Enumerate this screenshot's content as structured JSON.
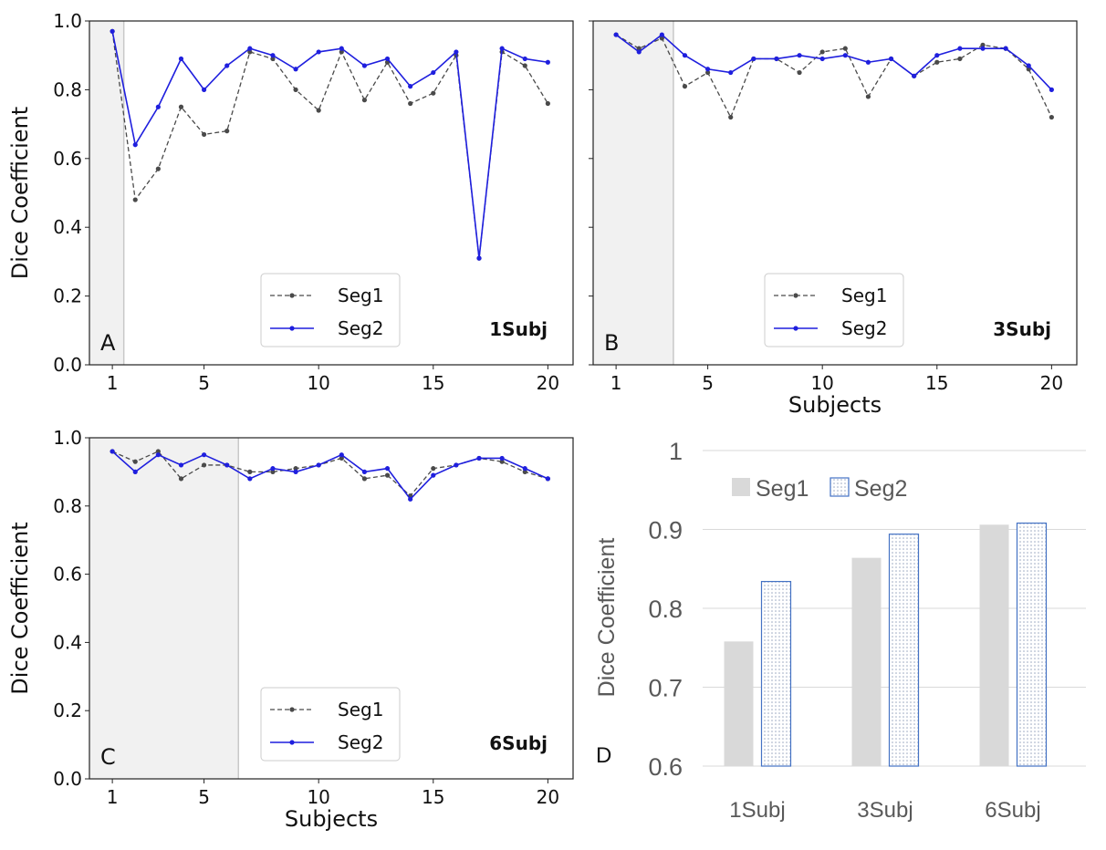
{
  "chart_data": [
    {
      "type": "line",
      "panel_letter": "A",
      "panel_tag": "1Subj",
      "title": "",
      "xlabel": "",
      "ylabel": "Dice Coefficient",
      "xlim": [
        0,
        21.1
      ],
      "ylim": [
        0.0,
        1.0
      ],
      "xticks": [
        1,
        5,
        10,
        15,
        20
      ],
      "yticks": [
        0.0,
        0.2,
        0.4,
        0.6,
        0.8,
        1.0
      ],
      "ytick_labels": [
        "0.0",
        "0.2",
        "0.4",
        "0.6",
        "0.8",
        "1.0"
      ],
      "show_ytick_labels": true,
      "shaded_subjects": 1,
      "legend": [
        "Seg1",
        "Seg2"
      ],
      "legend_location": "lower-center",
      "x": [
        1,
        2,
        3,
        4,
        5,
        6,
        7,
        8,
        9,
        10,
        11,
        12,
        13,
        14,
        15,
        16,
        17,
        18,
        19,
        20
      ],
      "series": [
        {
          "name": "Seg1",
          "style": "dashed",
          "color": "#4a4a4a",
          "values": [
            0.97,
            0.48,
            0.57,
            0.75,
            0.67,
            0.68,
            0.91,
            0.89,
            0.8,
            0.74,
            0.91,
            0.77,
            0.88,
            0.76,
            0.79,
            0.9,
            0.31,
            0.91,
            0.87,
            0.76
          ]
        },
        {
          "name": "Seg2",
          "style": "solid",
          "color": "#1f1fde",
          "values": [
            0.97,
            0.64,
            0.75,
            0.89,
            0.8,
            0.87,
            0.92,
            0.9,
            0.86,
            0.91,
            0.92,
            0.87,
            0.89,
            0.81,
            0.85,
            0.91,
            0.31,
            0.92,
            0.89,
            0.88
          ]
        }
      ]
    },
    {
      "type": "line",
      "panel_letter": "B",
      "panel_tag": "3Subj",
      "title": "",
      "xlabel": "Subjects",
      "ylabel": "",
      "xlim": [
        0,
        21.1
      ],
      "ylim": [
        0.0,
        1.0
      ],
      "xticks": [
        1,
        5,
        10,
        15,
        20
      ],
      "yticks": [
        0.0,
        0.2,
        0.4,
        0.6,
        0.8,
        1.0
      ],
      "ytick_labels": [
        "0.0",
        "0.2",
        "0.4",
        "0.6",
        "0.8",
        "1.0"
      ],
      "show_ytick_labels": false,
      "shaded_subjects": 3,
      "legend": [
        "Seg1",
        "Seg2"
      ],
      "legend_location": "lower-center",
      "x": [
        1,
        2,
        3,
        4,
        5,
        6,
        7,
        8,
        9,
        10,
        11,
        12,
        13,
        14,
        15,
        16,
        17,
        18,
        19,
        20
      ],
      "series": [
        {
          "name": "Seg1",
          "style": "dashed",
          "color": "#4a4a4a",
          "values": [
            0.96,
            0.92,
            0.95,
            0.81,
            0.85,
            0.72,
            0.89,
            0.89,
            0.85,
            0.91,
            0.92,
            0.78,
            0.89,
            0.84,
            0.88,
            0.89,
            0.93,
            0.92,
            0.86,
            0.72
          ]
        },
        {
          "name": "Seg2",
          "style": "solid",
          "color": "#1f1fde",
          "values": [
            0.96,
            0.91,
            0.96,
            0.9,
            0.86,
            0.85,
            0.89,
            0.89,
            0.9,
            0.89,
            0.9,
            0.88,
            0.89,
            0.84,
            0.9,
            0.92,
            0.92,
            0.92,
            0.87,
            0.8
          ]
        }
      ]
    },
    {
      "type": "line",
      "panel_letter": "C",
      "panel_tag": "6Subj",
      "title": "",
      "xlabel": "Subjects",
      "ylabel": "Dice Coefficient",
      "xlim": [
        0,
        21.1
      ],
      "ylim": [
        0.0,
        1.0
      ],
      "xticks": [
        1,
        5,
        10,
        15,
        20
      ],
      "yticks": [
        0.0,
        0.2,
        0.4,
        0.6,
        0.8,
        1.0
      ],
      "ytick_labels": [
        "0.0",
        "0.2",
        "0.4",
        "0.6",
        "0.8",
        "1.0"
      ],
      "show_ytick_labels": true,
      "shaded_subjects": 6,
      "legend": [
        "Seg1",
        "Seg2"
      ],
      "legend_location": "lower-center",
      "x": [
        1,
        2,
        3,
        4,
        5,
        6,
        7,
        8,
        9,
        10,
        11,
        12,
        13,
        14,
        15,
        16,
        17,
        18,
        19,
        20
      ],
      "series": [
        {
          "name": "Seg1",
          "style": "dashed",
          "color": "#4a4a4a",
          "values": [
            0.96,
            0.93,
            0.96,
            0.88,
            0.92,
            0.92,
            0.9,
            0.9,
            0.91,
            0.92,
            0.94,
            0.88,
            0.89,
            0.83,
            0.91,
            0.92,
            0.94,
            0.93,
            0.9,
            0.88
          ]
        },
        {
          "name": "Seg2",
          "style": "solid",
          "color": "#1f1fde",
          "values": [
            0.96,
            0.9,
            0.95,
            0.92,
            0.95,
            0.92,
            0.88,
            0.91,
            0.9,
            0.92,
            0.95,
            0.9,
            0.91,
            0.82,
            0.89,
            0.92,
            0.94,
            0.94,
            0.91,
            0.88
          ]
        }
      ]
    },
    {
      "type": "bar",
      "panel_letter": "D",
      "title": "",
      "xlabel": "",
      "ylabel": "Dice Coefficient",
      "ylim": [
        0.6,
        1.0
      ],
      "yticks": [
        0.6,
        0.7,
        0.8,
        0.9,
        1.0
      ],
      "ytick_labels": [
        "0.6",
        "0.7",
        "0.8",
        "0.9",
        "1"
      ],
      "categories": [
        "1Subj",
        "3Subj",
        "6Subj"
      ],
      "legend": [
        "Seg1",
        "Seg2"
      ],
      "legend_location": "top-left",
      "series": [
        {
          "name": "Seg1",
          "fill": "solid",
          "color": "#d9d9d9",
          "values": [
            0.758,
            0.864,
            0.906
          ]
        },
        {
          "name": "Seg2",
          "fill": "dotted",
          "color": "#4472c4",
          "values": [
            0.834,
            0.894,
            0.908
          ]
        }
      ]
    }
  ]
}
